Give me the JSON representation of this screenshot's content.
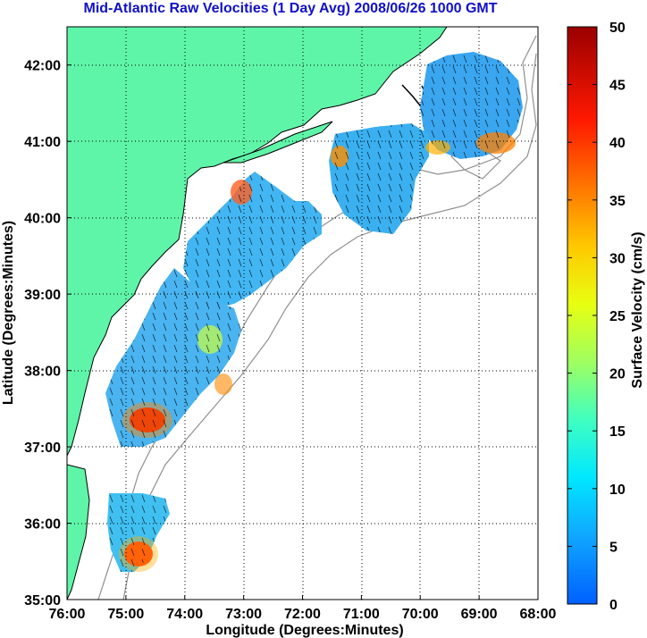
{
  "title": "Mid-Atlantic Raw Velocities (1 Day Avg) 2008/06/26 1000 GMT",
  "map": {
    "x_label": "Longitude (Degrees:Minutes)",
    "y_label": "Latitude (Degrees:Minutes)",
    "x_ticks": [
      "76:00",
      "75:00",
      "74:00",
      "73:00",
      "72:00",
      "71:00",
      "70:00",
      "69:00",
      "68:00"
    ],
    "y_ticks": [
      "42:00",
      "41:00",
      "40:00",
      "39:00",
      "38:00",
      "37:00",
      "36:00",
      "35:00"
    ],
    "lon_range": [
      -76,
      -68
    ],
    "lat_range": [
      35,
      42.5
    ],
    "land_color": "#5ff5a8",
    "grid": "dotted"
  },
  "colorbar": {
    "label": "Surface Velocity (cm/s)",
    "ticks": [
      "50",
      "45",
      "40",
      "35",
      "30",
      "25",
      "20",
      "15",
      "10",
      "5",
      "0"
    ],
    "range": [
      0,
      50
    ],
    "colormap": "jet"
  }
}
